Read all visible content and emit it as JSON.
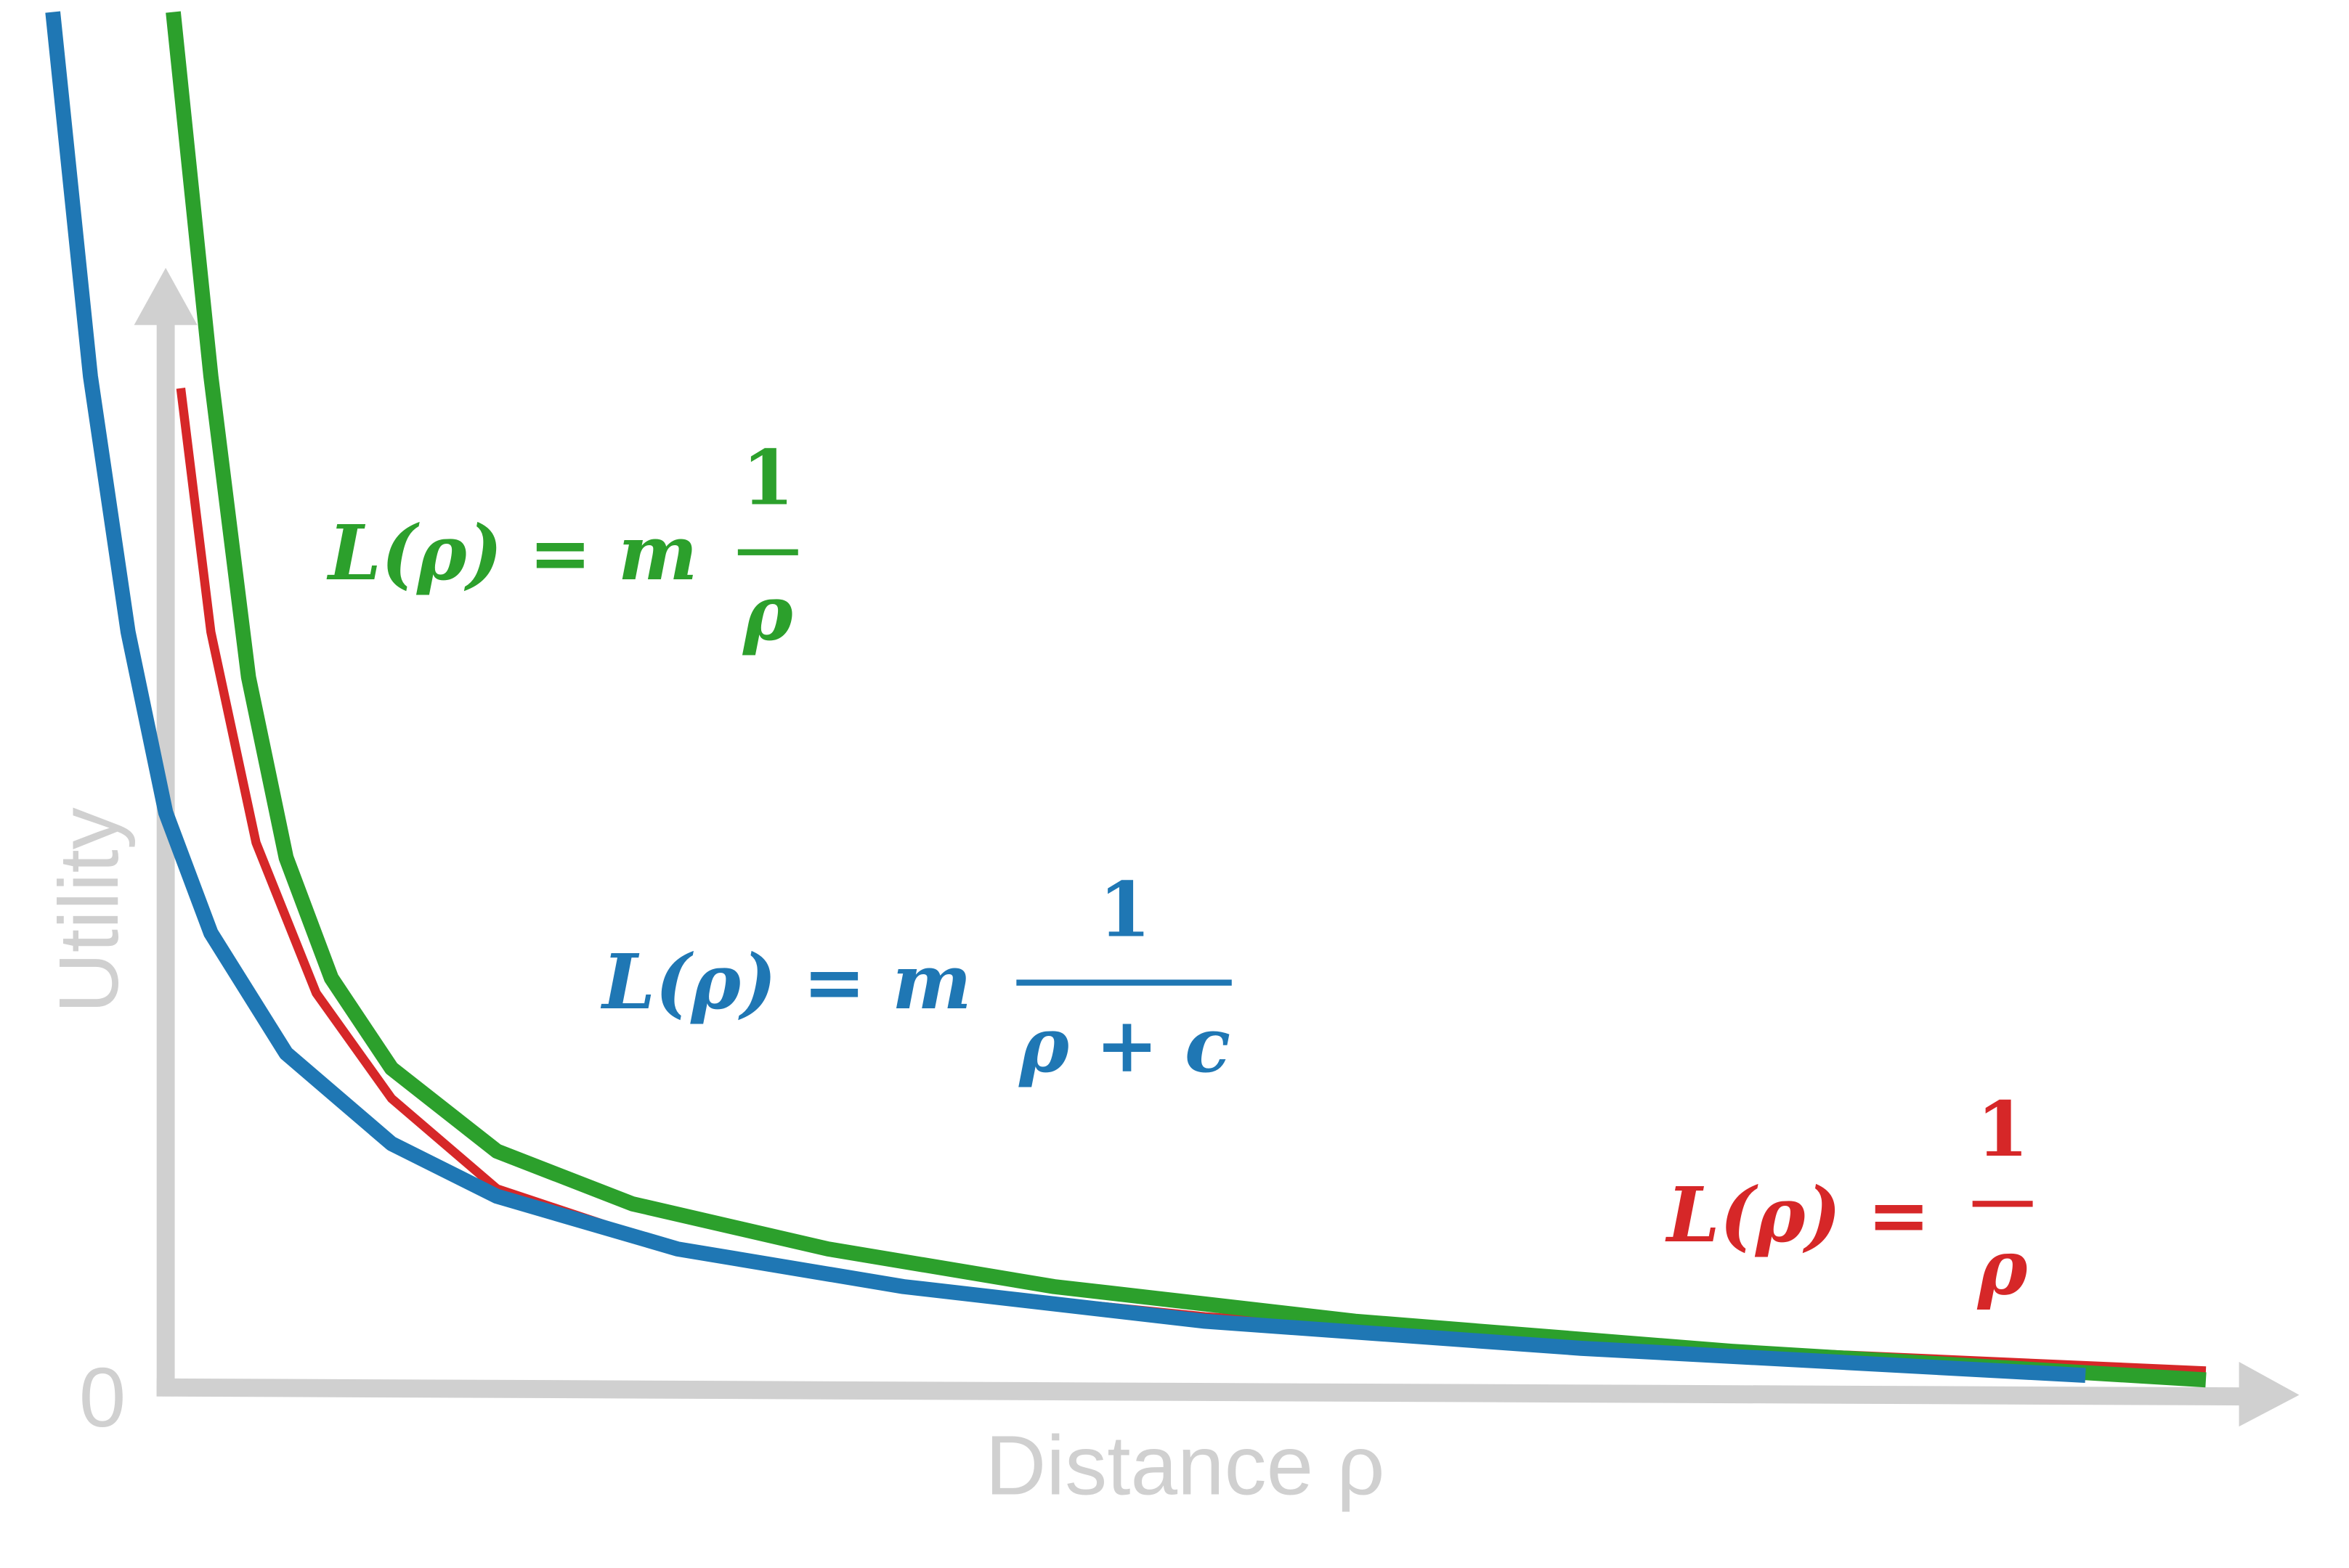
{
  "axes": {
    "y_label": "Utility",
    "x_label": "Distance ρ",
    "origin": "0"
  },
  "formulas": [
    {
      "lhs": "L(ρ) = m",
      "numerator": "1",
      "denominator": "ρ"
    },
    {
      "lhs": "L(ρ) = m",
      "numerator": "1",
      "denominator": "ρ + c"
    },
    {
      "lhs": "L(ρ) =",
      "numerator": "1",
      "denominator": "ρ"
    }
  ]
}
